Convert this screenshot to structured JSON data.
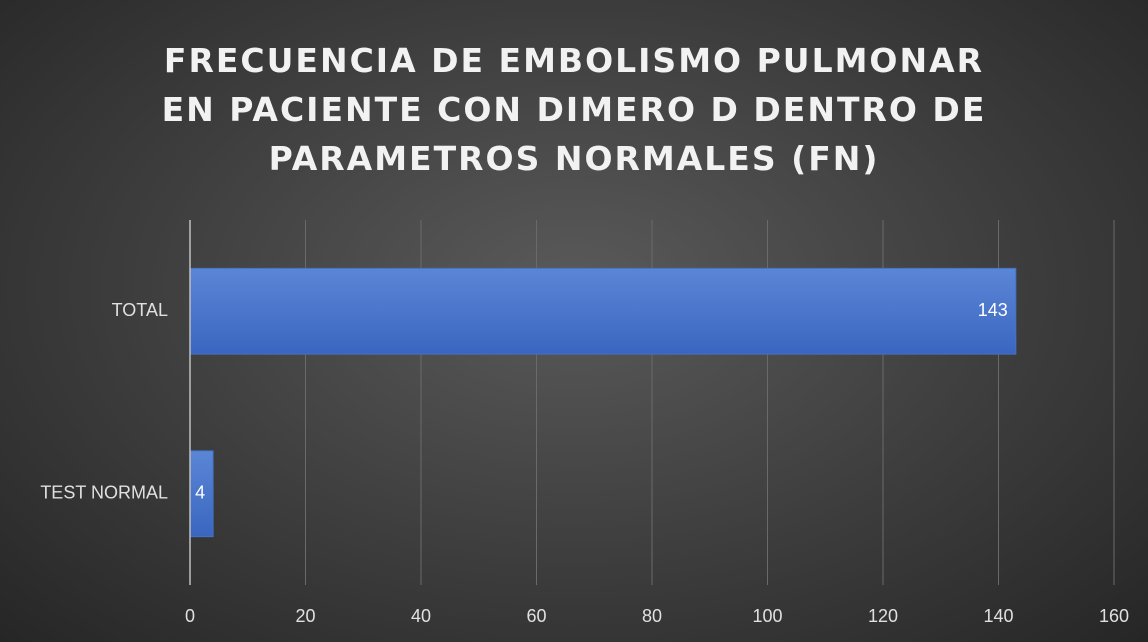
{
  "chart_data": {
    "type": "bar",
    "orientation": "horizontal",
    "title": "FRECUENCIA DE EMBOLISMO PULMONAR EN PACIENTE CON DIMERO D DENTRO DE PARAMETROS NORMALES (FN)",
    "categories": [
      "TOTAL",
      "TEST NORMAL"
    ],
    "values": [
      143,
      4
    ],
    "color": "#4472c4",
    "xlim": [
      0,
      160
    ],
    "xticks": [
      0,
      20,
      40,
      60,
      80,
      100,
      120,
      140,
      160
    ],
    "grid": true
  }
}
